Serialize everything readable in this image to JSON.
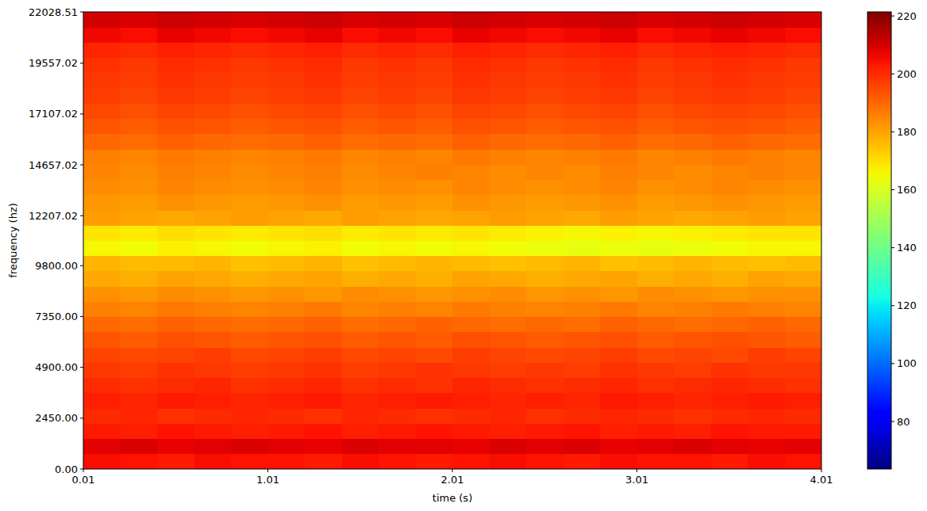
{
  "chart_data": {
    "type": "heatmap",
    "xlabel": "time (s)",
    "ylabel": "frequency (hz)",
    "x": [
      0.11,
      0.31,
      0.51,
      0.71,
      0.91,
      1.11,
      1.31,
      1.51,
      1.71,
      1.91,
      2.11,
      2.31,
      2.51,
      2.71,
      2.91,
      3.11,
      3.31,
      3.51,
      3.71,
      3.91
    ],
    "y": [
      367,
      1101,
      1836,
      2570,
      3304,
      4039,
      4773,
      5507,
      6242,
      6976,
      7710,
      8444,
      9179,
      9913,
      10647,
      11381,
      12116,
      12850,
      13584,
      14319,
      15053,
      15787,
      16521,
      17256,
      17990,
      18724,
      19459,
      20193,
      20927,
      21662
    ],
    "values": [
      [
        205,
        204,
        203,
        205,
        204,
        204,
        203,
        205,
        204,
        203,
        204,
        205,
        204,
        203,
        205,
        204,
        204,
        203,
        205,
        204
      ],
      [
        208,
        209,
        207,
        208,
        209,
        208,
        207,
        209,
        208,
        208,
        207,
        209,
        208,
        209,
        207,
        208,
        209,
        208,
        207,
        208
      ],
      [
        203,
        202,
        204,
        203,
        202,
        203,
        204,
        202,
        203,
        204,
        203,
        202,
        203,
        204,
        202,
        203,
        202,
        204,
        203,
        203
      ],
      [
        200,
        201,
        199,
        200,
        201,
        200,
        199,
        201,
        200,
        199,
        200,
        201,
        199,
        200,
        201,
        200,
        199,
        200,
        201,
        200
      ],
      [
        202,
        201,
        203,
        202,
        201,
        202,
        203,
        201,
        202,
        203,
        202,
        201,
        202,
        201,
        203,
        202,
        201,
        202,
        203,
        202
      ],
      [
        200,
        199,
        200,
        201,
        199,
        200,
        201,
        199,
        200,
        199,
        201,
        200,
        199,
        200,
        201,
        199,
        200,
        201,
        200,
        199
      ],
      [
        198,
        197,
        199,
        198,
        197,
        198,
        199,
        197,
        198,
        199,
        198,
        197,
        198,
        197,
        199,
        198,
        197,
        199,
        198,
        198
      ],
      [
        196,
        195,
        196,
        197,
        195,
        196,
        197,
        195,
        196,
        195,
        197,
        196,
        195,
        196,
        197,
        195,
        196,
        195,
        197,
        196
      ],
      [
        193,
        192,
        194,
        193,
        192,
        193,
        194,
        192,
        193,
        192,
        194,
        193,
        192,
        193,
        194,
        192,
        193,
        194,
        193,
        192
      ],
      [
        190,
        189,
        191,
        190,
        189,
        190,
        191,
        189,
        190,
        191,
        190,
        189,
        190,
        189,
        191,
        190,
        189,
        190,
        191,
        190
      ],
      [
        186,
        185,
        187,
        186,
        185,
        186,
        187,
        185,
        186,
        185,
        187,
        186,
        185,
        186,
        187,
        185,
        186,
        187,
        186,
        185
      ],
      [
        183,
        182,
        184,
        183,
        182,
        183,
        182,
        184,
        183,
        182,
        183,
        184,
        182,
        183,
        182,
        184,
        183,
        182,
        183,
        183
      ],
      [
        179,
        178,
        180,
        179,
        178,
        179,
        180,
        178,
        179,
        178,
        180,
        179,
        178,
        179,
        180,
        178,
        179,
        178,
        180,
        179
      ],
      [
        177,
        176,
        176,
        177,
        175,
        176,
        177,
        175,
        176,
        177,
        176,
        175,
        176,
        177,
        175,
        176,
        177,
        176,
        175,
        176
      ],
      [
        166,
        165,
        167,
        166,
        165,
        166,
        167,
        165,
        166,
        165,
        166,
        165,
        164,
        163,
        164,
        163,
        164,
        165,
        166,
        166
      ],
      [
        169,
        168,
        170,
        169,
        168,
        169,
        170,
        168,
        169,
        168,
        169,
        168,
        167,
        166,
        167,
        166,
        167,
        168,
        169,
        169
      ],
      [
        181,
        180,
        179,
        180,
        181,
        180,
        179,
        181,
        180,
        179,
        180,
        181,
        180,
        179,
        181,
        180,
        179,
        180,
        181,
        180
      ],
      [
        182,
        181,
        183,
        182,
        181,
        182,
        183,
        181,
        182,
        181,
        183,
        182,
        181,
        182,
        183,
        181,
        182,
        183,
        182,
        181
      ],
      [
        184,
        183,
        185,
        184,
        183,
        184,
        185,
        183,
        184,
        183,
        185,
        184,
        183,
        184,
        185,
        183,
        184,
        185,
        184,
        183
      ],
      [
        185,
        184,
        186,
        185,
        184,
        185,
        186,
        184,
        185,
        186,
        185,
        184,
        185,
        184,
        186,
        185,
        184,
        185,
        186,
        185
      ],
      [
        186,
        185,
        187,
        186,
        185,
        186,
        187,
        185,
        186,
        185,
        187,
        186,
        185,
        186,
        187,
        185,
        186,
        187,
        186,
        185
      ],
      [
        190,
        189,
        191,
        190,
        189,
        190,
        191,
        189,
        190,
        189,
        191,
        190,
        189,
        190,
        191,
        189,
        190,
        191,
        190,
        189
      ],
      [
        193,
        192,
        194,
        193,
        192,
        193,
        194,
        192,
        193,
        192,
        194,
        193,
        192,
        193,
        194,
        192,
        193,
        194,
        193,
        192
      ],
      [
        195,
        194,
        196,
        195,
        194,
        195,
        196,
        194,
        195,
        194,
        196,
        195,
        194,
        195,
        196,
        194,
        195,
        196,
        195,
        194
      ],
      [
        197,
        196,
        198,
        197,
        196,
        197,
        198,
        196,
        197,
        196,
        198,
        197,
        196,
        197,
        198,
        196,
        197,
        198,
        197,
        196
      ],
      [
        198,
        197,
        199,
        198,
        197,
        198,
        199,
        197,
        198,
        197,
        199,
        198,
        197,
        198,
        199,
        197,
        198,
        199,
        198,
        197
      ],
      [
        199,
        198,
        200,
        199,
        198,
        199,
        200,
        198,
        199,
        198,
        200,
        199,
        198,
        199,
        200,
        198,
        199,
        200,
        199,
        198
      ],
      [
        201,
        200,
        202,
        201,
        200,
        201,
        202,
        200,
        201,
        200,
        202,
        201,
        200,
        201,
        202,
        200,
        201,
        202,
        201,
        200
      ],
      [
        206,
        205,
        207,
        206,
        205,
        206,
        207,
        205,
        206,
        205,
        207,
        206,
        205,
        206,
        207,
        205,
        206,
        207,
        206,
        205
      ],
      [
        210,
        209,
        211,
        210,
        209,
        210,
        211,
        209,
        210,
        209,
        211,
        210,
        209,
        210,
        211,
        209,
        210,
        211,
        210,
        209
      ]
    ],
    "xlim": [
      0.01,
      4.01
    ],
    "xticks": [
      0.01,
      1.01,
      2.01,
      3.01,
      4.01
    ],
    "ylim": [
      0,
      22028.51
    ],
    "yticks": [
      {
        "value": 0,
        "label": "0.00"
      },
      {
        "value": 2450,
        "label": "2450.00"
      },
      {
        "value": 4900,
        "label": "4900.00"
      },
      {
        "value": 7350,
        "label": "7350.00"
      },
      {
        "value": 9800,
        "label": "9800.00"
      },
      {
        "value": 12207.02,
        "label": "12207.02"
      },
      {
        "value": 14657.02,
        "label": "14657.02"
      },
      {
        "value": 17107.02,
        "label": "17107.02"
      },
      {
        "value": 19557.02,
        "label": "19557.02"
      },
      {
        "value": 22028.51,
        "label": "22028.51"
      }
    ],
    "color_range": [
      63.6,
      221.4
    ],
    "color_ticks": [
      80,
      100,
      120,
      140,
      160,
      180,
      200,
      220
    ]
  }
}
